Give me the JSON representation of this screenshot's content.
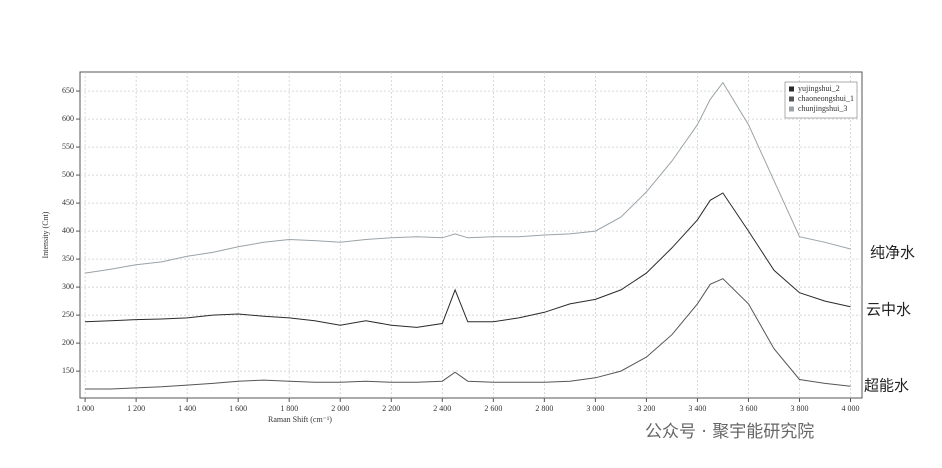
{
  "chart_data": {
    "type": "line",
    "x_label": "Raman Shift (cm⁻¹)",
    "y_label": "Intensity (Cnt)",
    "x": [
      1000,
      1100,
      1200,
      1300,
      1400,
      1500,
      1600,
      1700,
      1800,
      1900,
      2000,
      2100,
      2200,
      2300,
      2400,
      2450,
      2500,
      2600,
      2700,
      2800,
      2900,
      3000,
      3100,
      3200,
      3300,
      3400,
      3450,
      3500,
      3600,
      3700,
      3800,
      3900,
      4000
    ],
    "series": [
      {
        "name": "yujingshui_2",
        "color": "#2a2a2a",
        "values": [
          238,
          240,
          242,
          243,
          245,
          250,
          252,
          248,
          245,
          240,
          232,
          240,
          232,
          228,
          235,
          295,
          238,
          238,
          245,
          255,
          270,
          278,
          295,
          325,
          370,
          420,
          455,
          468,
          400,
          330,
          290,
          275,
          265
        ]
      },
      {
        "name": "chaoneongshui_1",
        "color": "#555555",
        "values": [
          118,
          118,
          120,
          122,
          125,
          128,
          132,
          134,
          132,
          130,
          130,
          132,
          130,
          130,
          132,
          148,
          132,
          130,
          130,
          130,
          132,
          138,
          150,
          175,
          215,
          270,
          305,
          315,
          270,
          190,
          135,
          128,
          123
        ]
      },
      {
        "name": "chunjingshui_3",
        "color": "#9aa3a8",
        "values": [
          325,
          332,
          340,
          345,
          355,
          362,
          372,
          380,
          385,
          383,
          380,
          385,
          388,
          390,
          388,
          395,
          388,
          390,
          390,
          393,
          395,
          400,
          425,
          470,
          525,
          590,
          635,
          665,
          590,
          490,
          390,
          380,
          368
        ]
      }
    ],
    "xlim": [
      980,
      4045
    ],
    "ylim": [
      102,
      684
    ],
    "xticks": [
      {
        "value": 1000,
        "label": "1 000"
      },
      {
        "value": 1200,
        "label": "1 200"
      },
      {
        "value": 1400,
        "label": "1 400"
      },
      {
        "value": 1600,
        "label": "1 600"
      },
      {
        "value": 1800,
        "label": "1 800"
      },
      {
        "value": 2000,
        "label": "2 000"
      },
      {
        "value": 2200,
        "label": "2 200"
      },
      {
        "value": 2400,
        "label": "2 400"
      },
      {
        "value": 2600,
        "label": "2 600"
      },
      {
        "value": 2800,
        "label": "2 800"
      },
      {
        "value": 3000,
        "label": "3 000"
      },
      {
        "value": 3200,
        "label": "3 200"
      },
      {
        "value": 3400,
        "label": "3 400"
      },
      {
        "value": 3600,
        "label": "3 600"
      },
      {
        "value": 3800,
        "label": "3 800"
      },
      {
        "value": 4000,
        "label": "4 000"
      }
    ],
    "yticks": [
      150,
      200,
      250,
      300,
      350,
      400,
      450,
      500,
      550,
      600,
      650
    ],
    "grid": true,
    "legend": "upper right",
    "annotations": [
      "纯净水",
      "云中水",
      "超能水"
    ]
  },
  "watermark": "公众号 · 聚宇能研究院"
}
